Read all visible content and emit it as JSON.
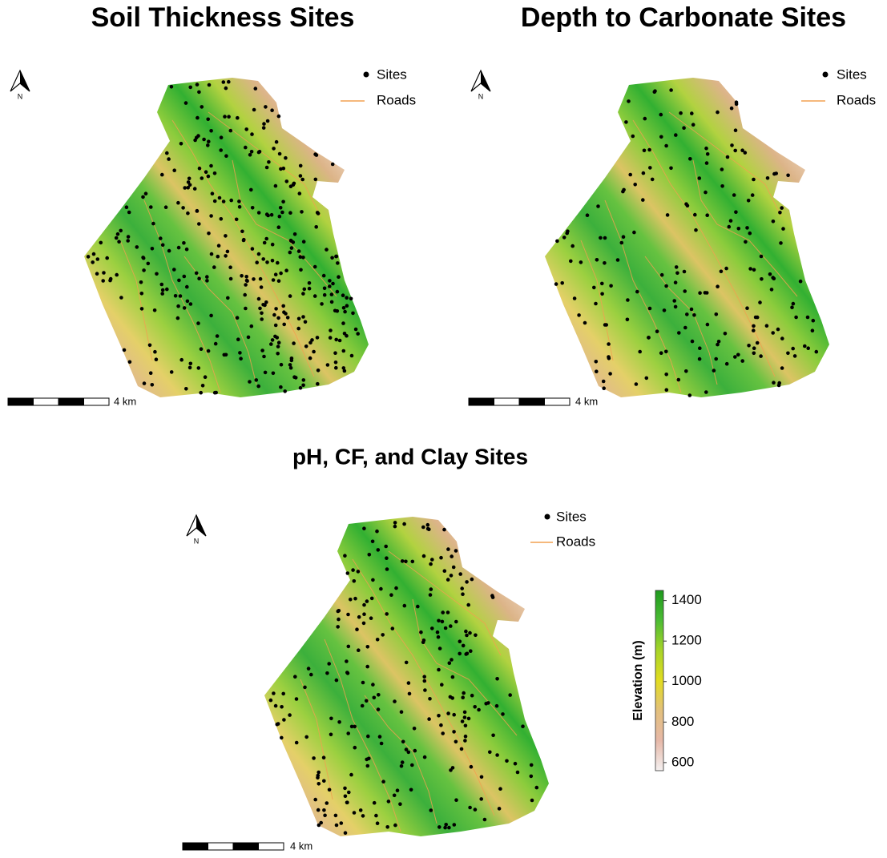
{
  "maps": [
    {
      "title": "Soil Thickness Sites",
      "north": "N",
      "legend": [
        "Sites",
        "Roads"
      ],
      "scale_label": "4 km"
    },
    {
      "title": "Depth to Carbonate Sites",
      "north": "N",
      "legend": [
        "Sites",
        "Roads"
      ],
      "scale_label": "4 km"
    },
    {
      "title": "pH, CF, and Clay Sites",
      "north": "N",
      "legend": [
        "Sites",
        "Roads"
      ],
      "scale_label": "4 km"
    }
  ],
  "colorbar": {
    "title": "Elevation (m)",
    "lim": [
      560,
      1450
    ],
    "ticks": [
      600,
      800,
      1000,
      1200,
      1400
    ],
    "colors": [
      "#f4f0f0",
      "#e6b8a8",
      "#e3c07c",
      "#e2dc20",
      "#a8d428",
      "#4cbc34",
      "#1e9a1e"
    ]
  }
}
